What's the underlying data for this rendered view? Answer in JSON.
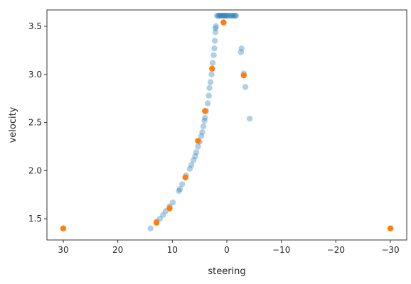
{
  "chart_data": {
    "type": "scatter",
    "xlabel": "steering",
    "ylabel": "velocity",
    "xlim": [
      33,
      -33
    ],
    "ylim": [
      1.28,
      3.67
    ],
    "x_ticks": [
      30,
      20,
      10,
      0,
      -10,
      -20,
      -30
    ],
    "x_tick_labels": [
      "30",
      "20",
      "10",
      "0",
      "−10",
      "−20",
      "−30"
    ],
    "y_ticks": [
      1.5,
      2.0,
      2.5,
      3.0,
      3.5
    ],
    "y_tick_labels": [
      "1.5",
      "2.0",
      "2.5",
      "3.0",
      "3.5"
    ],
    "grid": false,
    "series": [
      {
        "color": "#1f77b4",
        "alpha": 0.35,
        "points": [
          [
            14.0,
            1.4
          ],
          [
            12.9,
            1.47
          ],
          [
            12.3,
            1.5
          ],
          [
            11.7,
            1.54
          ],
          [
            11.2,
            1.58
          ],
          [
            10.5,
            1.63
          ],
          [
            9.9,
            1.67
          ],
          [
            8.8,
            1.79
          ],
          [
            8.6,
            1.81
          ],
          [
            8.2,
            1.86
          ],
          [
            7.5,
            1.95
          ],
          [
            6.8,
            2.02
          ],
          [
            6.5,
            2.06
          ],
          [
            6.1,
            2.11
          ],
          [
            5.8,
            2.15
          ],
          [
            5.6,
            2.19
          ],
          [
            5.3,
            2.25
          ],
          [
            5.0,
            2.3
          ],
          [
            4.7,
            2.36
          ],
          [
            4.5,
            2.4
          ],
          [
            4.3,
            2.46
          ],
          [
            4.1,
            2.52
          ],
          [
            4.0,
            2.55
          ],
          [
            3.8,
            2.62
          ],
          [
            3.5,
            2.7
          ],
          [
            3.3,
            2.78
          ],
          [
            3.2,
            2.86
          ],
          [
            3.0,
            2.92
          ],
          [
            2.8,
            3.0
          ],
          [
            2.7,
            3.06
          ],
          [
            2.6,
            3.12
          ],
          [
            2.4,
            3.2
          ],
          [
            2.3,
            3.27
          ],
          [
            2.2,
            3.35
          ],
          [
            2.1,
            3.44
          ],
          [
            2.0,
            3.5
          ],
          [
            2.1,
            3.48
          ],
          [
            1.8,
            3.61
          ],
          [
            1.6,
            3.61
          ],
          [
            1.4,
            3.61
          ],
          [
            1.2,
            3.61
          ],
          [
            1.0,
            3.61
          ],
          [
            0.8,
            3.61
          ],
          [
            0.6,
            3.61
          ],
          [
            0.4,
            3.61
          ],
          [
            0.2,
            3.61
          ],
          [
            0.0,
            3.61
          ],
          [
            -0.2,
            3.61
          ],
          [
            -0.5,
            3.61
          ],
          [
            -0.8,
            3.61
          ],
          [
            -1.0,
            3.61
          ],
          [
            -1.3,
            3.61
          ],
          [
            -1.5,
            3.61
          ],
          [
            -1.7,
            3.61
          ],
          [
            -2.7,
            3.27
          ],
          [
            -2.6,
            3.23
          ],
          [
            -3.1,
            3.01
          ],
          [
            -3.4,
            2.87
          ],
          [
            -4.2,
            2.54
          ]
        ]
      },
      {
        "color": "#ff7f0e",
        "alpha": 1,
        "points": [
          [
            30.0,
            1.4
          ],
          [
            12.9,
            1.46
          ],
          [
            10.5,
            1.61
          ],
          [
            7.6,
            1.93
          ],
          [
            5.3,
            2.31
          ],
          [
            4.0,
            2.62
          ],
          [
            2.7,
            3.06
          ],
          [
            0.6,
            3.54
          ],
          [
            -3.1,
            2.99
          ],
          [
            -30.0,
            1.4
          ]
        ]
      }
    ]
  }
}
